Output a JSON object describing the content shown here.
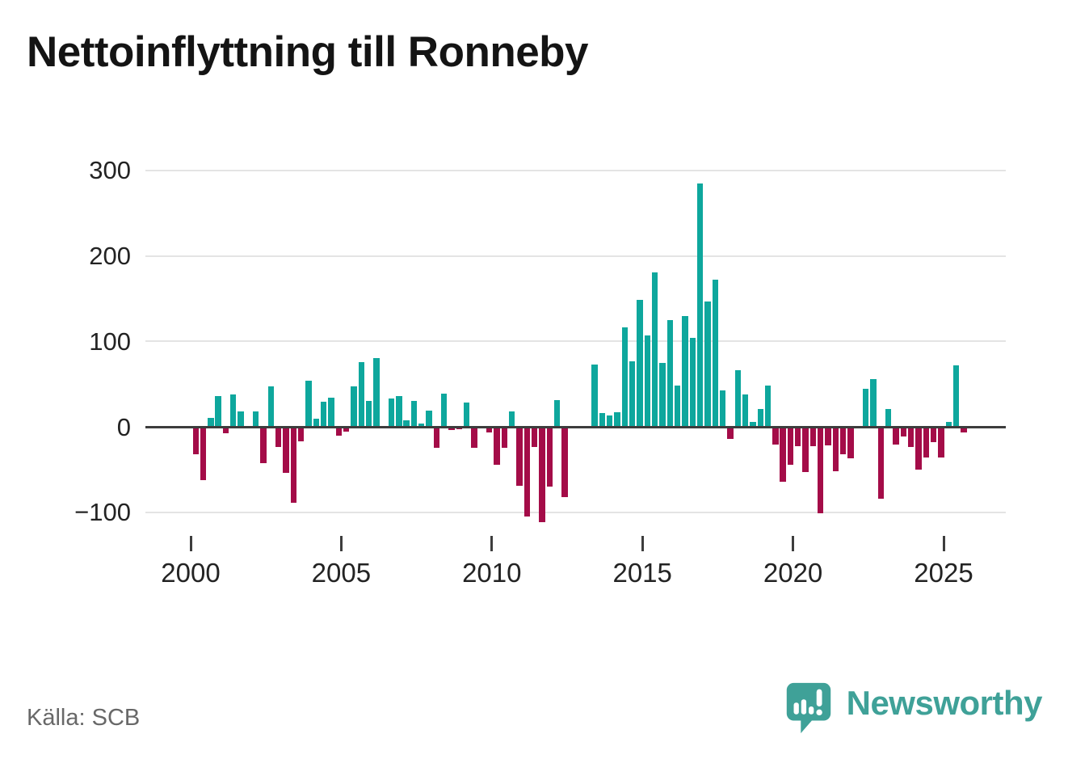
{
  "title": "Nettoinflyttning till Ronneby",
  "source": "Källa: SCB",
  "branding": {
    "logo_text": "Newsworthy"
  },
  "colors": {
    "positive_bar": "#0ea79d",
    "negative_bar": "#a40c48",
    "brand_teal": "#3fa198",
    "axis_line": "#3d3d3d",
    "gridline": "#e4e4e4",
    "title_text": "#141414",
    "tick_text": "#232323",
    "source_text": "#686868",
    "background": "#ffffff"
  },
  "chart_data": {
    "type": "bar",
    "title": "Nettoinflyttning till Ronneby",
    "xlabel": "",
    "ylabel": "",
    "x_unit": "quarter",
    "start_period": "2000Q1",
    "end_period": "2025Q3",
    "grid": "horizontal",
    "legend": "none",
    "ylim": [
      -125,
      320
    ],
    "y_tick_values": [
      300,
      200,
      100,
      0,
      -100
    ],
    "y_tick_labels": [
      "300",
      "200",
      "100",
      "0",
      "−100"
    ],
    "x_tick_years": [
      2000,
      2005,
      2010,
      2015,
      2020,
      2025
    ],
    "x_tick_labels": [
      "2000",
      "2005",
      "2010",
      "2015",
      "2020",
      "2025"
    ],
    "quarters": [
      "2000Q1",
      "2000Q2",
      "2000Q3",
      "2000Q4",
      "2001Q1",
      "2001Q2",
      "2001Q3",
      "2001Q4",
      "2002Q1",
      "2002Q2",
      "2002Q3",
      "2002Q4",
      "2003Q1",
      "2003Q2",
      "2003Q3",
      "2003Q4",
      "2004Q1",
      "2004Q2",
      "2004Q3",
      "2004Q4",
      "2005Q1",
      "2005Q2",
      "2005Q3",
      "2005Q4",
      "2006Q1",
      "2006Q2",
      "2006Q3",
      "2006Q4",
      "2007Q1",
      "2007Q2",
      "2007Q3",
      "2007Q4",
      "2008Q1",
      "2008Q2",
      "2008Q3",
      "2008Q4",
      "2009Q1",
      "2009Q2",
      "2009Q3",
      "2009Q4",
      "2010Q1",
      "2010Q2",
      "2010Q3",
      "2010Q4",
      "2011Q1",
      "2011Q2",
      "2011Q3",
      "2011Q4",
      "2012Q1",
      "2012Q2",
      "2012Q3",
      "2012Q4",
      "2013Q1",
      "2013Q2",
      "2013Q3",
      "2013Q4",
      "2014Q1",
      "2014Q2",
      "2014Q3",
      "2014Q4",
      "2015Q1",
      "2015Q2",
      "2015Q3",
      "2015Q4",
      "2016Q1",
      "2016Q2",
      "2016Q3",
      "2016Q4",
      "2017Q1",
      "2017Q2",
      "2017Q3",
      "2017Q4",
      "2018Q1",
      "2018Q2",
      "2018Q3",
      "2018Q4",
      "2019Q1",
      "2019Q2",
      "2019Q3",
      "2019Q4",
      "2020Q1",
      "2020Q2",
      "2020Q3",
      "2020Q4",
      "2021Q1",
      "2021Q2",
      "2021Q3",
      "2021Q4",
      "2022Q1",
      "2022Q2",
      "2022Q3",
      "2022Q4",
      "2023Q1",
      "2023Q2",
      "2023Q3",
      "2023Q4",
      "2024Q1",
      "2024Q2",
      "2024Q3",
      "2024Q4",
      "2025Q1",
      "2025Q2",
      "2025Q3"
    ],
    "values": [
      -32,
      -62,
      10,
      36,
      -8,
      38,
      18,
      0,
      18,
      -43,
      47,
      -24,
      -54,
      -89,
      -17,
      54,
      9,
      29,
      34,
      -10,
      -6,
      47,
      76,
      30,
      80,
      0,
      33,
      36,
      8,
      30,
      4,
      19,
      -25,
      39,
      -4,
      -3,
      28,
      -25,
      -2,
      -7,
      -44,
      -25,
      18,
      -69,
      -105,
      -24,
      -112,
      -70,
      31,
      -82,
      0,
      0,
      0,
      73,
      16,
      13,
      17,
      116,
      77,
      148,
      107,
      181,
      75,
      125,
      48,
      130,
      104,
      285,
      147,
      172,
      43,
      -14,
      66,
      38,
      6,
      21,
      48,
      -21,
      -64,
      -44,
      -23,
      -53,
      -23,
      -101,
      -22,
      -52,
      -32,
      -37,
      0,
      44,
      56,
      -84,
      21,
      -21,
      -11,
      -24,
      -50,
      -36,
      -18,
      -36,
      6,
      72,
      -7
    ]
  }
}
